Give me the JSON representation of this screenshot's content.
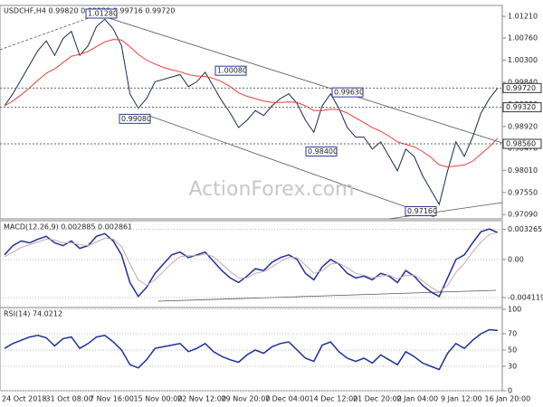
{
  "chart_data": [
    {
      "type": "line",
      "title": "USDCHF,H4  0.99820 0.99832 0.99716 0.99720",
      "watermark": "ActionForex.com",
      "ylim": [
        0.97,
        1.014
      ],
      "yticks": [
        {
          "value": 1.0121,
          "label": "1.01210"
        },
        {
          "value": 1.0076,
          "label": "1.00760"
        },
        {
          "value": 1.003,
          "label": "1.00300"
        },
        {
          "value": 0.9984,
          "label": "0.99840"
        },
        {
          "value": 0.9938,
          "label": "0.99380"
        },
        {
          "value": 0.9892,
          "label": "0.98920"
        },
        {
          "value": 0.9847,
          "label": "0.98470"
        },
        {
          "value": 0.9801,
          "label": "0.98010"
        },
        {
          "value": 0.9755,
          "label": "0.97550"
        },
        {
          "value": 0.9709,
          "label": "0.97090"
        }
      ],
      "levels": [
        {
          "value": 0.9972,
          "label": "0.99720"
        },
        {
          "value": 0.9932,
          "label": "0.99320"
        },
        {
          "value": 0.9856,
          "label": "0.98560"
        }
      ],
      "annotations": [
        {
          "value": 1.0128,
          "label": "1.01280"
        },
        {
          "value": 1.0008,
          "label": "1.00080"
        },
        {
          "value": 0.9963,
          "label": "0.99630"
        },
        {
          "value": 0.9908,
          "label": "0.99080"
        },
        {
          "value": 0.984,
          "label": "0.98400"
        },
        {
          "value": 0.9716,
          "label": "0.97160"
        }
      ],
      "series": [
        {
          "color": "#1a2a4a",
          "values": [
            0.9935,
            0.996,
            0.999,
            1.002,
            1.005,
            1.007,
            1.004,
            1.0075,
            1.009,
            1.004,
            1.006,
            1.01,
            1.0115,
            1.0095,
            1.006,
            0.996,
            0.993,
            0.995,
            0.9985,
            0.999,
            0.9995,
            1.0,
            0.9975,
            0.9985,
            1.0005,
            0.9975,
            0.9945,
            0.992,
            0.989,
            0.9905,
            0.9925,
            0.9915,
            0.9935,
            0.995,
            0.996,
            0.994,
            0.9905,
            0.988,
            0.9935,
            0.996,
            0.993,
            0.989,
            0.987,
            0.987,
            0.9845,
            0.986,
            0.983,
            0.98,
            0.9845,
            0.983,
            0.979,
            0.976,
            0.973,
            0.98,
            0.986,
            0.983,
            0.987,
            0.992,
            0.995,
            0.9972
          ]
        },
        {
          "color": "#e8403a",
          "values": [
            0.9935,
            0.9945,
            0.9958,
            0.9972,
            0.9988,
            1.0003,
            1.0012,
            1.0025,
            1.0038,
            1.0042,
            1.0048,
            1.0058,
            1.0068,
            1.0073,
            1.0072,
            1.0058,
            1.0042,
            1.003,
            1.0022,
            1.0015,
            1.001,
            1.0006,
            1.0,
            0.9997,
            0.9996,
            0.9992,
            0.9985,
            0.9975,
            0.9962,
            0.9955,
            0.995,
            0.9945,
            0.9942,
            0.9942,
            0.9943,
            0.9942,
            0.9935,
            0.9925,
            0.9925,
            0.9928,
            0.9927,
            0.992,
            0.991,
            0.99,
            0.989,
            0.9882,
            0.9872,
            0.986,
            0.9855,
            0.985,
            0.984,
            0.9828,
            0.9812,
            0.9808,
            0.981,
            0.9812,
            0.982,
            0.9835,
            0.985,
            0.9868
          ]
        }
      ]
    },
    {
      "type": "line",
      "title": "MACD(12,26,9) 0.002885 0.002861",
      "ylim": [
        -0.005,
        0.004
      ],
      "yticks": [
        {
          "value": 0.003265,
          "label": "0.003265"
        },
        {
          "value": 0,
          "label": "0.00"
        },
        {
          "value": -0.004119,
          "label": "-0.004119"
        }
      ],
      "series": [
        {
          "color": "#1f2f9a",
          "values": [
            0.0005,
            0.0015,
            0.002,
            0.0018,
            0.0022,
            0.0025,
            0.0018,
            0.0015,
            0.002,
            0.0012,
            0.0015,
            0.0025,
            0.0028,
            0.002,
            0.0005,
            -0.0025,
            -0.004,
            -0.003,
            -0.0015,
            -0.0005,
            0.0005,
            0.0008,
            0.0002,
            0.0005,
            0.0008,
            -0.0002,
            -0.0012,
            -0.002,
            -0.0025,
            -0.0018,
            -0.001,
            -0.0012,
            -0.0003,
            0.0002,
            0.0005,
            0.0,
            -0.0015,
            -0.0022,
            -0.0008,
            0.0,
            -0.0005,
            -0.0015,
            -0.002,
            -0.0018,
            -0.0022,
            -0.0015,
            -0.0018,
            -0.0025,
            -0.0012,
            -0.0018,
            -0.0028,
            -0.0035,
            -0.004,
            -0.002,
            0.0,
            0.0005,
            0.0018,
            0.003,
            0.0033,
            0.0029
          ]
        },
        {
          "color": "#c8a8a8",
          "values": [
            0.0003,
            0.0008,
            0.0013,
            0.0016,
            0.0019,
            0.0022,
            0.0021,
            0.0018,
            0.0018,
            0.0016,
            0.0015,
            0.0019,
            0.0023,
            0.0022,
            0.0014,
            -0.0005,
            -0.0022,
            -0.0028,
            -0.0022,
            -0.0013,
            -0.0004,
            0.0003,
            0.0004,
            0.0004,
            0.0006,
            0.0003,
            -0.0005,
            -0.0013,
            -0.002,
            -0.002,
            -0.0015,
            -0.0013,
            -0.0008,
            -0.0002,
            0.0002,
            0.0002,
            -0.0006,
            -0.0015,
            -0.0012,
            -0.0005,
            -0.0004,
            -0.0009,
            -0.0015,
            -0.0017,
            -0.002,
            -0.0018,
            -0.0017,
            -0.0021,
            -0.0017,
            -0.0017,
            -0.0023,
            -0.003,
            -0.0035,
            -0.0028,
            -0.0014,
            -0.0004,
            0.0008,
            0.0019,
            0.0027,
            0.0029
          ]
        }
      ]
    },
    {
      "type": "line",
      "title": "RSI(14) 74.0212",
      "ylim": [
        0,
        100
      ],
      "yticks": [
        100,
        70,
        50,
        30,
        0
      ],
      "time_labels": [
        "24 Oct 2018",
        "31 Oct 08:00",
        "7 Nov 16:00",
        "15 Nov 00:00",
        "22 Nov 12:00",
        "29 Nov 20:00",
        "7 Dec 04:00",
        "14 Dec 12:00",
        "21 Dec 20:00",
        "2 Jan 04:00",
        "9 Jan 12:00",
        "16 Jan 20:00"
      ],
      "series": [
        {
          "color": "#1f2f9a",
          "values": [
            52,
            58,
            62,
            66,
            68,
            65,
            55,
            64,
            66,
            52,
            58,
            66,
            68,
            60,
            50,
            32,
            28,
            38,
            52,
            54,
            56,
            58,
            48,
            52,
            58,
            48,
            42,
            38,
            35,
            44,
            50,
            46,
            54,
            58,
            60,
            50,
            40,
            36,
            56,
            60,
            48,
            40,
            36,
            40,
            34,
            44,
            38,
            32,
            48,
            42,
            34,
            30,
            26,
            46,
            58,
            52,
            62,
            70,
            75,
            74
          ]
        }
      ]
    }
  ]
}
